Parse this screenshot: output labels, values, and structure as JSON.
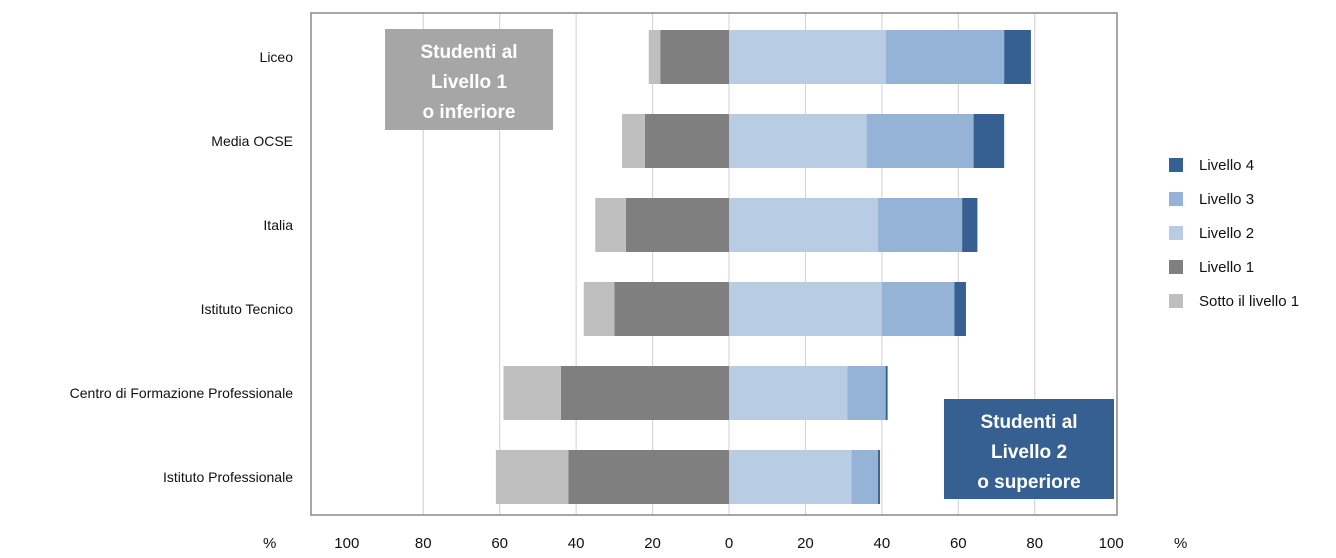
{
  "chart_data": {
    "type": "bar",
    "orientation": "horizontal",
    "stacking": "diverging",
    "categories": [
      "Liceo",
      "Media OCSE",
      "Italia",
      "Istituto Tecnico",
      "Centro di Formazione Professionale",
      "Istituto Professionale"
    ],
    "series": [
      {
        "name": "Sotto il livello 1",
        "side": "negative",
        "color": "#bfbfbf",
        "values": [
          3,
          6,
          8,
          8,
          15,
          19
        ]
      },
      {
        "name": "Livello 1",
        "side": "negative",
        "color": "#7f7f7f",
        "values": [
          18,
          22,
          27,
          30,
          44,
          42
        ]
      },
      {
        "name": "Livello 2",
        "side": "positive",
        "color": "#b8cce4",
        "values": [
          41,
          36,
          39,
          40,
          31,
          32
        ]
      },
      {
        "name": "Livello 3",
        "side": "positive",
        "color": "#95b3d7",
        "values": [
          31,
          28,
          22,
          19,
          10,
          7
        ]
      },
      {
        "name": "Livello 4",
        "side": "positive",
        "color": "#366092",
        "values": [
          7,
          8,
          4,
          3,
          0.5,
          0.5
        ]
      }
    ],
    "legend_order": [
      "Livello 4",
      "Livello 3",
      "Livello 2",
      "Livello 1",
      "Sotto il livello 1"
    ],
    "legend_position": "right",
    "xlim": [
      -100,
      100
    ],
    "x_ticks": [
      -100,
      -80,
      -60,
      -40,
      -20,
      0,
      20,
      40,
      60,
      80,
      100
    ],
    "x_tick_labels": [
      "100",
      "80",
      "60",
      "40",
      "20",
      "0",
      "20",
      "40",
      "60",
      "80",
      "100"
    ],
    "x_unit_left": "%",
    "x_unit_right": "%",
    "grid": "vertical",
    "annotations": [
      {
        "lines": [
          "Studenti al",
          "Livello 1",
          "o inferiore"
        ],
        "color": "#a6a6a6",
        "position": "top-left"
      },
      {
        "lines": [
          "Studenti al",
          "Livello 2",
          "o superiore"
        ],
        "color": "#366092",
        "position": "bottom-right"
      }
    ]
  }
}
